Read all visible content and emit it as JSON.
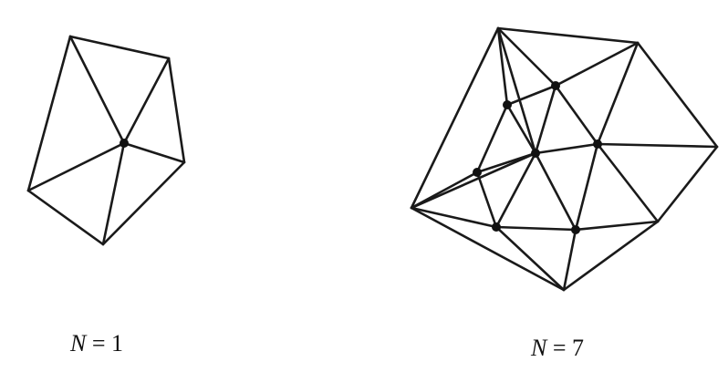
{
  "captions": [
    {
      "variable": "N",
      "equals": "=",
      "value": "1"
    },
    {
      "variable": "N",
      "equals": "=",
      "value": "7"
    }
  ],
  "diagrams": [
    {
      "interior_point_count": 1,
      "vertices": [
        "v0",
        "v1",
        "v2",
        "v3",
        "v4",
        "v5"
      ],
      "interior": [
        "v5"
      ],
      "edges": [
        [
          "v0",
          "v1"
        ],
        [
          "v1",
          "v2"
        ],
        [
          "v2",
          "v3"
        ],
        [
          "v3",
          "v4"
        ],
        [
          "v4",
          "v0"
        ],
        [
          "v5",
          "v0"
        ],
        [
          "v5",
          "v1"
        ],
        [
          "v5",
          "v2"
        ],
        [
          "v5",
          "v3"
        ],
        [
          "v5",
          "v4"
        ]
      ]
    },
    {
      "interior_point_count": 7,
      "vertices": [
        "h0",
        "h1",
        "h2",
        "h3",
        "h4",
        "h5",
        "p0",
        "p1",
        "p2",
        "p3",
        "p4",
        "p5",
        "p6"
      ],
      "interior": [
        "p0",
        "p1",
        "p2",
        "p3",
        "p4",
        "p5",
        "p6"
      ],
      "edges": [
        [
          "h0",
          "h1"
        ],
        [
          "h1",
          "h2"
        ],
        [
          "h2",
          "h3"
        ],
        [
          "h3",
          "h4"
        ],
        [
          "h4",
          "h5"
        ],
        [
          "h5",
          "h0"
        ],
        [
          "h0",
          "p0"
        ],
        [
          "h0",
          "p1"
        ],
        [
          "h1",
          "p1"
        ],
        [
          "h1",
          "p2"
        ],
        [
          "h2",
          "p2"
        ],
        [
          "h3",
          "p2"
        ],
        [
          "h3",
          "p3"
        ],
        [
          "h4",
          "p3"
        ],
        [
          "h4",
          "p4"
        ],
        [
          "h5",
          "p4"
        ],
        [
          "h5",
          "p5"
        ],
        [
          "h5",
          "p6"
        ],
        [
          "h0",
          "p6"
        ],
        [
          "p0",
          "p1"
        ],
        [
          "p1",
          "p2"
        ],
        [
          "p2",
          "p3"
        ],
        [
          "p3",
          "p4"
        ],
        [
          "p4",
          "p5"
        ],
        [
          "p5",
          "p0"
        ],
        [
          "p5",
          "p6"
        ],
        [
          "p6",
          "p0"
        ],
        [
          "p1",
          "p6"
        ],
        [
          "p2",
          "p6"
        ],
        [
          "p3",
          "p6"
        ],
        [
          "p4",
          "p6"
        ]
      ]
    }
  ]
}
